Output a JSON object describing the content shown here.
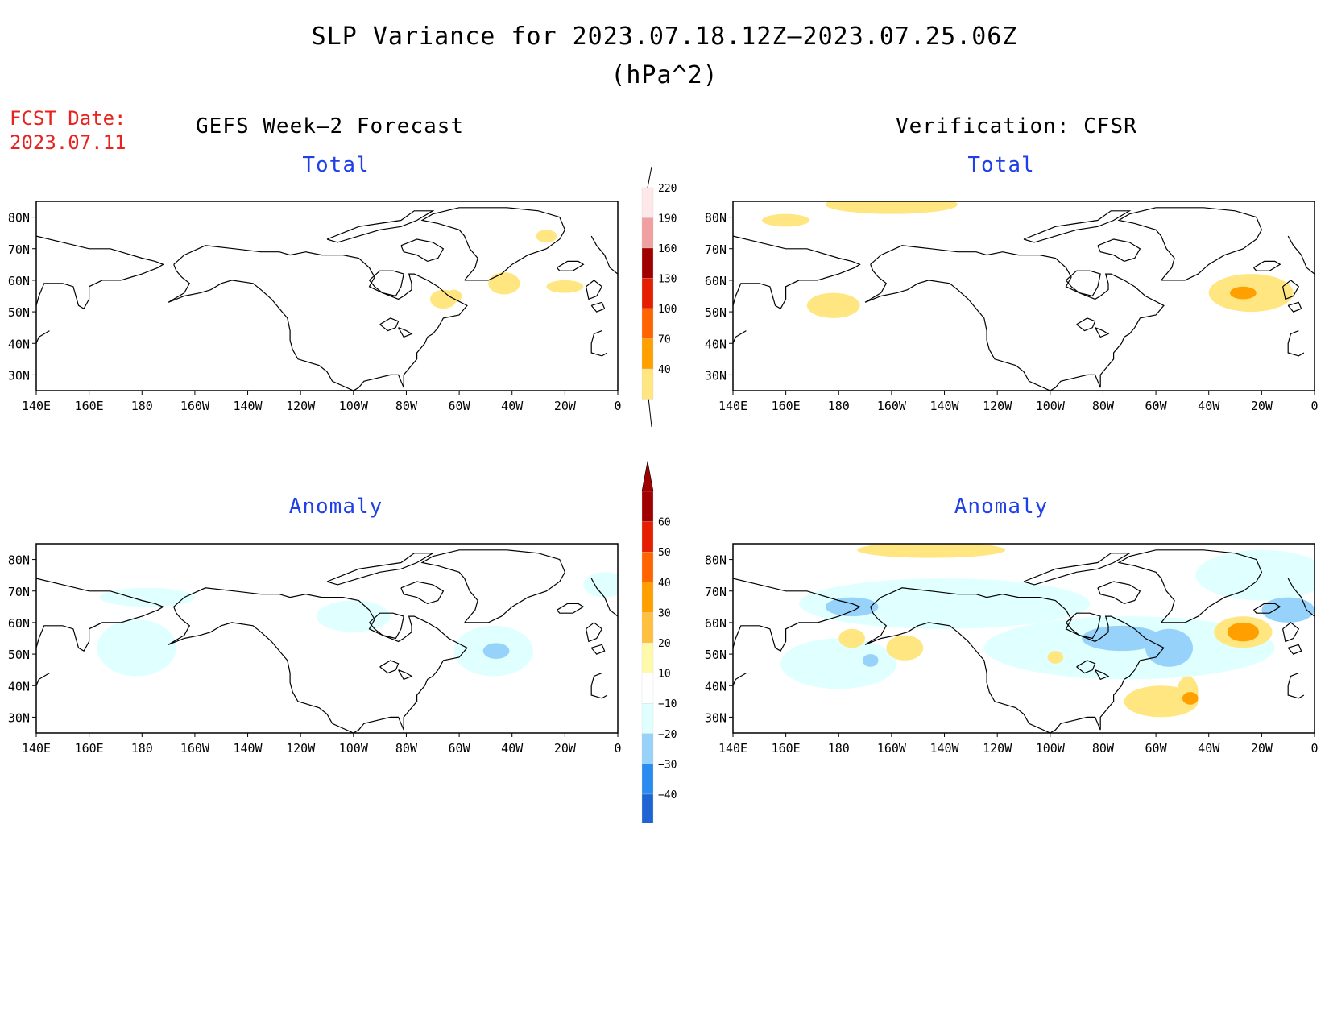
{
  "title": "SLP Variance for 2023.07.18.12Z–2023.07.25.06Z",
  "units": "(hPa^2)",
  "fcst_date_label": "FCST Date:",
  "fcst_date_value": "2023.07.11",
  "left_header": "GEFS Week–2 Forecast",
  "right_header": "Verification: CFSR",
  "panels": [
    {
      "id": "fc-total",
      "subtitle": "Total"
    },
    {
      "id": "ver-total",
      "subtitle": "Total"
    },
    {
      "id": "fc-anom",
      "subtitle": "Anomaly"
    },
    {
      "id": "ver-anom",
      "subtitle": "Anomaly"
    }
  ],
  "map_axes": {
    "lat_labels": [
      "80N",
      "70N",
      "60N",
      "50N",
      "40N",
      "30N"
    ],
    "lat_values": [
      80,
      70,
      60,
      50,
      40,
      30
    ],
    "lon_labels": [
      "140E",
      "160E",
      "180",
      "160W",
      "140W",
      "120W",
      "100W",
      "80W",
      "60W",
      "40W",
      "20W",
      "0"
    ],
    "lat_range": [
      25,
      85
    ],
    "lon_range_deg_east": [
      140,
      360
    ]
  },
  "colorbar_total": {
    "levels": [
      "40",
      "70",
      "100",
      "130",
      "160",
      "190",
      "220"
    ],
    "colors": [
      "#ffe680",
      "#ffa000",
      "#ff6400",
      "#e61e00",
      "#a00000",
      "#f0a0a0",
      "#ffe8ea"
    ]
  },
  "colorbar_anomaly": {
    "levels": [
      "−40",
      "−30",
      "−20",
      "−10",
      "10",
      "20",
      "30",
      "40",
      "50",
      "60"
    ],
    "colors": [
      "#1e64d2",
      "#2a8cf0",
      "#96d2fa",
      "#e0ffff",
      "#ffffff",
      "#fffaaa",
      "#ffc040",
      "#ffa000",
      "#ff6400",
      "#e61e00",
      "#a00000"
    ]
  },
  "palette": {
    "yellow": "#ffe680",
    "orange": "#ffa000",
    "lightblue": "#e0ffff",
    "midblue": "#96d2fa",
    "blue": "#5aaaf0"
  }
}
